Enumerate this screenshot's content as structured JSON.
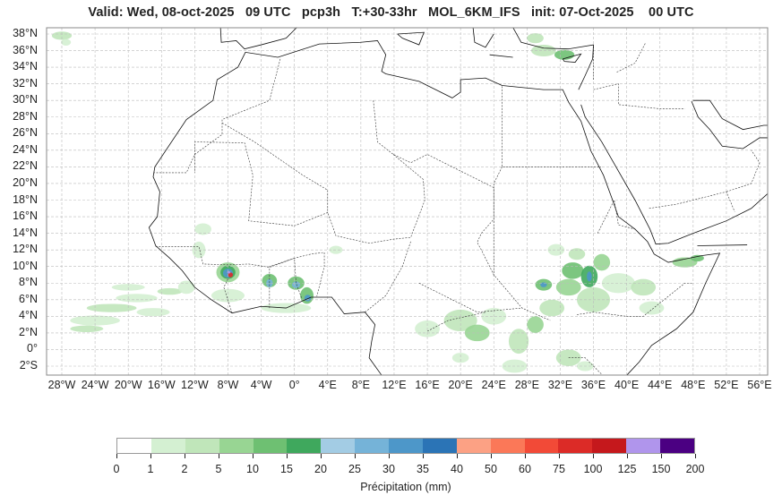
{
  "title": "Valid: Wed, 08-oct-2025   09 UTC   pcp3h   T:+30-33hr   MOL_6KM_IFS   init: 07-Oct-2025    00 UTC",
  "lat_labels": [
    "38°N",
    "36°N",
    "34°N",
    "32°N",
    "30°N",
    "28°N",
    "26°N",
    "24°N",
    "22°N",
    "20°N",
    "18°N",
    "16°N",
    "14°N",
    "12°N",
    "10°N",
    "8°N",
    "6°N",
    "4°N",
    "2°N",
    "0°",
    "2°S"
  ],
  "lon_labels": [
    "28°W",
    "24°W",
    "20°W",
    "16°W",
    "12°W",
    "8°W",
    "4°W",
    "0°",
    "4°E",
    "8°E",
    "12°E",
    "16°E",
    "20°E",
    "24°E",
    "28°E",
    "32°E",
    "36°E",
    "40°E",
    "44°E",
    "48°E",
    "52°E",
    "56°E"
  ],
  "colorbar": {
    "label": "Précipitation (mm)",
    "ticks": [
      "0",
      "1",
      "2",
      "5",
      "10",
      "15",
      "20",
      "25",
      "30",
      "35",
      "40",
      "50",
      "60",
      "75",
      "100",
      "125",
      "150",
      "200"
    ],
    "colors": [
      "#ffffff",
      "#d4f0d2",
      "#c0e6ba",
      "#98d593",
      "#6ec072",
      "#3fa85d",
      "#a3cce4",
      "#75b3d8",
      "#4d97c9",
      "#2b74b6",
      "#fca184",
      "#fb7858",
      "#f24a37",
      "#dc2b27",
      "#c5181c",
      "#b095ec",
      "#4b0082"
    ]
  }
}
